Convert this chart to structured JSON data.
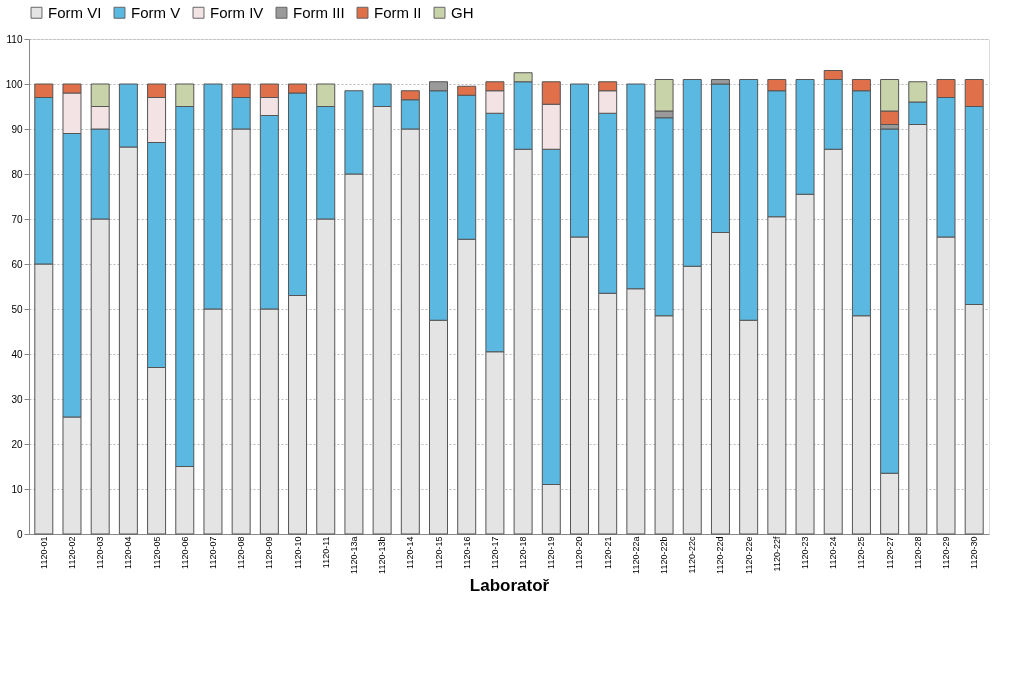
{
  "chart_data": {
    "type": "bar",
    "stacked": true,
    "xlabel": "Laboratoř",
    "categories": [
      "1120-01",
      "1120-02",
      "1120-03",
      "1120-04",
      "1120-05",
      "1120-06",
      "1120-07",
      "1120-08",
      "1120-09",
      "1120-10",
      "1120-11",
      "1120-13a",
      "1120-13b",
      "1120-14",
      "1120-15",
      "1120-16",
      "1120-17",
      "1120-18",
      "1120-19",
      "1120-20",
      "1120-21",
      "1120-22a",
      "1120-22b",
      "1120-22c",
      "1120-22d",
      "1120-22e",
      "1120-22f",
      "1120-23",
      "1120-24",
      "1120-25",
      "1120-27",
      "1120-28",
      "1120-29",
      "1120-30"
    ],
    "series": [
      {
        "name": "Form VI",
        "color": "#e4e4e4",
        "values": [
          60,
          26,
          70,
          86,
          37,
          15,
          50,
          90,
          50,
          53,
          70,
          80,
          95,
          90,
          47.5,
          65.5,
          40.5,
          85.5,
          11,
          66,
          53.5,
          54.5,
          48.5,
          59.5,
          67,
          47.5,
          70.5,
          75.5,
          85.5,
          48.5,
          13.5,
          91,
          66,
          51
        ]
      },
      {
        "name": "Form V",
        "color": "#5bb8e0",
        "values": [
          37,
          63,
          20,
          14,
          50,
          80,
          50,
          7,
          43,
          45,
          25,
          18.5,
          5,
          6.5,
          51,
          32,
          53,
          15,
          74.5,
          34,
          40,
          45.5,
          44,
          41.5,
          33,
          53.5,
          28,
          25.5,
          15.5,
          50,
          76.5,
          5,
          31,
          44
        ]
      },
      {
        "name": "Form IV",
        "color": "#f3e3e5",
        "values": [
          0,
          9,
          5,
          0,
          10,
          0,
          0,
          0,
          4,
          0,
          0,
          0,
          0,
          0,
          0,
          0,
          5,
          0,
          10,
          0,
          5,
          0,
          0,
          0,
          0,
          0,
          0,
          0,
          0,
          0,
          0,
          0,
          0,
          0
        ]
      },
      {
        "name": "Form III",
        "color": "#9a9a9a",
        "values": [
          0,
          0,
          0,
          0,
          0,
          0,
          0,
          0,
          0,
          0,
          0,
          0,
          0,
          0,
          2,
          0,
          0,
          0,
          0,
          0,
          0,
          0,
          1.5,
          0,
          1,
          0,
          0,
          0,
          0,
          0,
          1,
          0,
          0,
          0
        ]
      },
      {
        "name": "Form II",
        "color": "#e0704a",
        "values": [
          3,
          2,
          0,
          0,
          3,
          0,
          0,
          3,
          3,
          2,
          0,
          0,
          0,
          2,
          0,
          2,
          2,
          0,
          5,
          0,
          2,
          0,
          0,
          0,
          0,
          0,
          2.5,
          0,
          2,
          2.5,
          3,
          0,
          4,
          6
        ]
      },
      {
        "name": "GH",
        "color": "#c9d3a9",
        "values": [
          0,
          0,
          5,
          0,
          0,
          5,
          0,
          0,
          0,
          0,
          5,
          0,
          0,
          0,
          0,
          0,
          0,
          2,
          0,
          0,
          0,
          0,
          7,
          0,
          0,
          0,
          0,
          0,
          0,
          0,
          7,
          4.5,
          0,
          0
        ]
      }
    ],
    "ylim": [
      0,
      110
    ],
    "yticks": [
      0,
      10,
      20,
      30,
      40,
      50,
      60,
      70,
      80,
      90,
      100,
      110
    ],
    "grid": "y",
    "legend": "top"
  }
}
